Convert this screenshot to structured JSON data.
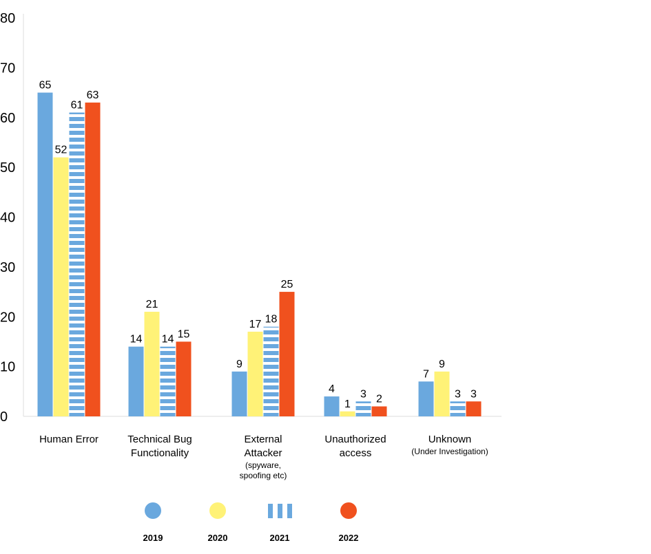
{
  "chart_data": {
    "type": "bar",
    "title": "",
    "xlabel": "",
    "ylabel": "",
    "ylim": [
      0,
      80
    ],
    "yticks": [
      0,
      10,
      20,
      30,
      40,
      50,
      60,
      70,
      80
    ],
    "grid": false,
    "legend_position": "bottom",
    "categories": [
      {
        "lines": [
          "Human Error"
        ],
        "sub": []
      },
      {
        "lines": [
          "Technical Bug",
          "Functionality"
        ],
        "sub": []
      },
      {
        "lines": [
          "External",
          "Attacker"
        ],
        "sub": [
          "(spyware,",
          "spoofing etc)"
        ]
      },
      {
        "lines": [
          "Unauthorized",
          "access"
        ],
        "sub": []
      },
      {
        "lines": [
          "Unknown"
        ],
        "sub": [
          "(Under Investigation)"
        ]
      }
    ],
    "series": [
      {
        "name": "2019",
        "color": "#6AA8DE",
        "pattern": "solid",
        "values": [
          65,
          14,
          9,
          4,
          7
        ]
      },
      {
        "name": "2020",
        "color": "#FFF277",
        "pattern": "solid",
        "values": [
          52,
          21,
          17,
          1,
          9
        ]
      },
      {
        "name": "2021",
        "color": "#6AA8DE",
        "pattern": "striped",
        "values": [
          61,
          14,
          18,
          3,
          3
        ]
      },
      {
        "name": "2022",
        "color": "#F0511E",
        "pattern": "solid",
        "values": [
          63,
          15,
          25,
          2,
          3
        ]
      }
    ]
  }
}
